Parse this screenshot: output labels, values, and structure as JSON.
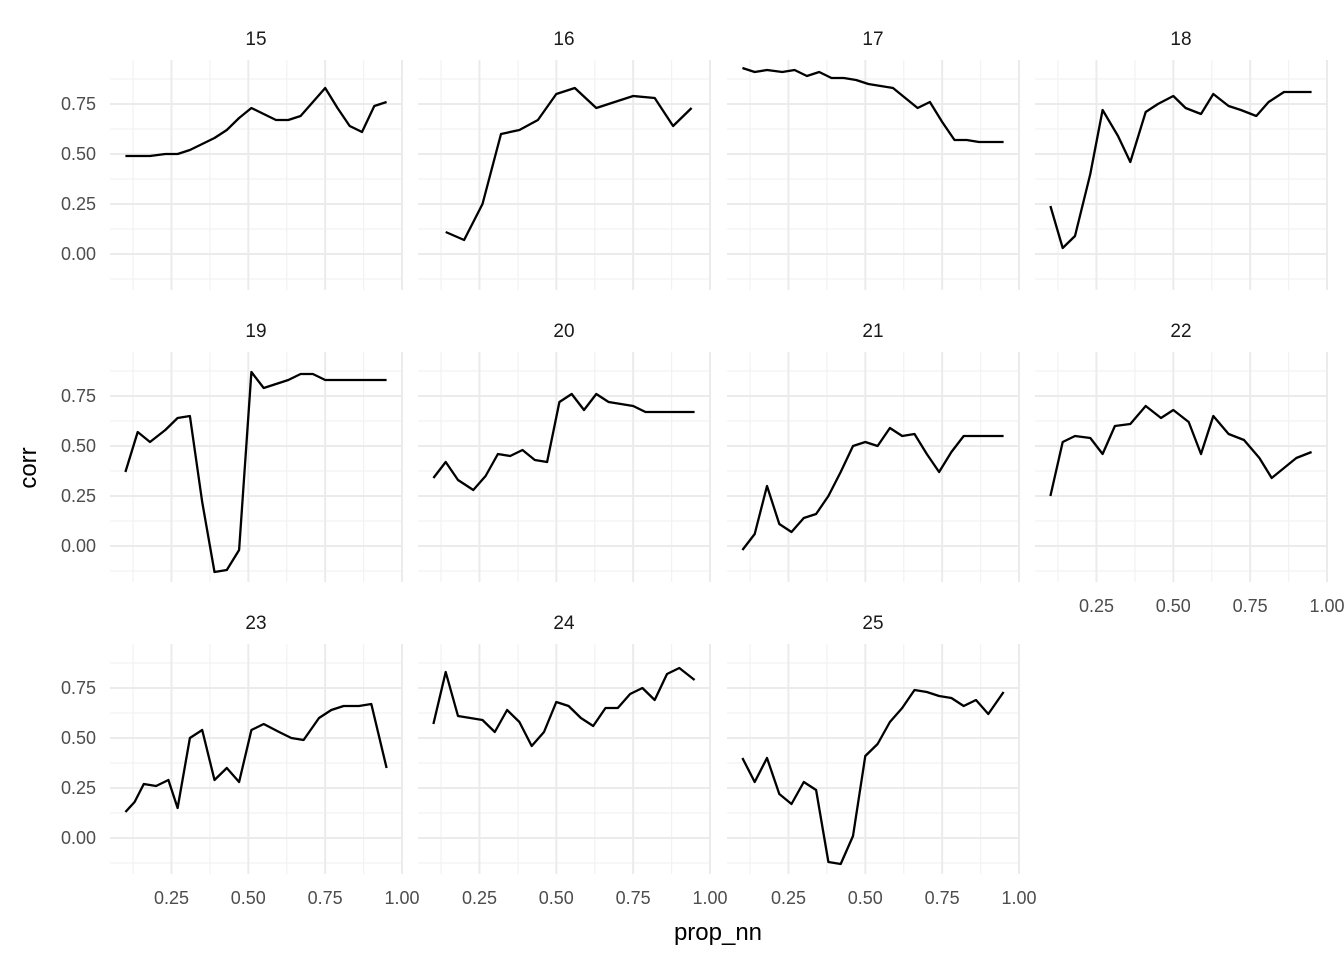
{
  "chart_data": {
    "type": "line",
    "layout": "facet_wrap",
    "xlabel": "prop_nn",
    "ylabel": "corr",
    "xlim": [
      0.05,
      1.0
    ],
    "ylim": [
      -0.18,
      0.97
    ],
    "x_ticks": [
      0.25,
      0.5,
      0.75,
      1.0
    ],
    "x_tick_labels": [
      "0.25",
      "0.50",
      "0.75",
      "1.00"
    ],
    "y_ticks": [
      0.0,
      0.25,
      0.5,
      0.75
    ],
    "y_tick_labels": [
      "0.00",
      "0.25",
      "0.50",
      "0.75"
    ],
    "grid": true,
    "facets": [
      {
        "label": "15",
        "x": [
          0.1,
          0.14,
          0.18,
          0.23,
          0.27,
          0.31,
          0.35,
          0.39,
          0.43,
          0.47,
          0.51,
          0.55,
          0.59,
          0.63,
          0.67,
          0.71,
          0.75,
          0.79,
          0.83,
          0.87,
          0.91,
          0.95
        ],
        "y": [
          0.49,
          0.49,
          0.49,
          0.5,
          0.5,
          0.52,
          0.55,
          0.58,
          0.62,
          0.68,
          0.73,
          0.7,
          0.67,
          0.67,
          0.69,
          0.76,
          0.83,
          0.73,
          0.64,
          0.61,
          0.74,
          0.76
        ]
      },
      {
        "label": "16",
        "x": [
          0.14,
          0.2,
          0.26,
          0.32,
          0.38,
          0.44,
          0.5,
          0.56,
          0.63,
          0.69,
          0.75,
          0.82,
          0.88,
          0.94
        ],
        "y": [
          0.11,
          0.07,
          0.25,
          0.6,
          0.62,
          0.67,
          0.8,
          0.83,
          0.73,
          0.76,
          0.79,
          0.78,
          0.64,
          0.73
        ]
      },
      {
        "label": "17",
        "x": [
          0.1,
          0.14,
          0.18,
          0.23,
          0.27,
          0.31,
          0.35,
          0.39,
          0.43,
          0.47,
          0.51,
          0.55,
          0.59,
          0.63,
          0.67,
          0.71,
          0.75,
          0.79,
          0.83,
          0.87,
          0.91,
          0.95
        ],
        "y": [
          0.93,
          0.91,
          0.92,
          0.91,
          0.92,
          0.89,
          0.91,
          0.88,
          0.88,
          0.87,
          0.85,
          0.84,
          0.83,
          0.78,
          0.73,
          0.76,
          0.66,
          0.57,
          0.57,
          0.56,
          0.56,
          0.56
        ]
      },
      {
        "label": "18",
        "x": [
          0.1,
          0.14,
          0.18,
          0.23,
          0.27,
          0.32,
          0.36,
          0.41,
          0.45,
          0.5,
          0.54,
          0.59,
          0.63,
          0.68,
          0.72,
          0.77,
          0.81,
          0.86,
          0.9,
          0.95
        ],
        "y": [
          0.24,
          0.03,
          0.09,
          0.4,
          0.72,
          0.59,
          0.46,
          0.71,
          0.75,
          0.79,
          0.73,
          0.7,
          0.8,
          0.74,
          0.72,
          0.69,
          0.76,
          0.81,
          0.81,
          0.81
        ]
      },
      {
        "label": "19",
        "x": [
          0.1,
          0.14,
          0.18,
          0.23,
          0.27,
          0.31,
          0.35,
          0.39,
          0.43,
          0.47,
          0.51,
          0.55,
          0.59,
          0.63,
          0.67,
          0.71,
          0.75,
          0.79,
          0.83,
          0.87,
          0.91,
          0.95
        ],
        "y": [
          0.37,
          0.57,
          0.52,
          0.58,
          0.64,
          0.65,
          0.22,
          -0.13,
          -0.12,
          -0.02,
          0.87,
          0.79,
          0.81,
          0.83,
          0.86,
          0.86,
          0.83,
          0.83,
          0.83,
          0.83,
          0.83,
          0.83
        ]
      },
      {
        "label": "20",
        "x": [
          0.1,
          0.14,
          0.18,
          0.23,
          0.27,
          0.31,
          0.35,
          0.39,
          0.43,
          0.47,
          0.51,
          0.55,
          0.59,
          0.63,
          0.67,
          0.71,
          0.75,
          0.79,
          0.83,
          0.87,
          0.91,
          0.95
        ],
        "y": [
          0.34,
          0.42,
          0.33,
          0.28,
          0.35,
          0.46,
          0.45,
          0.48,
          0.43,
          0.42,
          0.72,
          0.76,
          0.68,
          0.76,
          0.72,
          0.71,
          0.7,
          0.67,
          0.67,
          0.67,
          0.67,
          0.67
        ]
      },
      {
        "label": "21",
        "x": [
          0.1,
          0.14,
          0.18,
          0.22,
          0.26,
          0.3,
          0.34,
          0.38,
          0.42,
          0.46,
          0.5,
          0.54,
          0.58,
          0.62,
          0.66,
          0.7,
          0.74,
          0.78,
          0.82,
          0.86,
          0.9,
          0.95
        ],
        "y": [
          -0.02,
          0.06,
          0.3,
          0.11,
          0.07,
          0.14,
          0.16,
          0.25,
          0.37,
          0.5,
          0.52,
          0.5,
          0.59,
          0.55,
          0.56,
          0.46,
          0.37,
          0.47,
          0.55,
          0.55,
          0.55,
          0.55
        ]
      },
      {
        "label": "22",
        "x": [
          0.1,
          0.14,
          0.18,
          0.23,
          0.27,
          0.31,
          0.36,
          0.41,
          0.46,
          0.5,
          0.55,
          0.59,
          0.63,
          0.68,
          0.73,
          0.78,
          0.82,
          0.86,
          0.9,
          0.95
        ],
        "y": [
          0.25,
          0.52,
          0.55,
          0.54,
          0.46,
          0.6,
          0.61,
          0.7,
          0.64,
          0.68,
          0.62,
          0.46,
          0.65,
          0.56,
          0.53,
          0.44,
          0.34,
          0.39,
          0.44,
          0.47
        ]
      },
      {
        "label": "23",
        "x": [
          0.1,
          0.13,
          0.16,
          0.2,
          0.24,
          0.27,
          0.31,
          0.35,
          0.39,
          0.43,
          0.47,
          0.51,
          0.55,
          0.6,
          0.64,
          0.68,
          0.73,
          0.77,
          0.81,
          0.86,
          0.9,
          0.95
        ],
        "y": [
          0.13,
          0.18,
          0.27,
          0.26,
          0.29,
          0.15,
          0.5,
          0.54,
          0.29,
          0.35,
          0.28,
          0.54,
          0.57,
          0.53,
          0.5,
          0.49,
          0.6,
          0.64,
          0.66,
          0.66,
          0.67,
          0.35
        ]
      },
      {
        "label": "24",
        "x": [
          0.1,
          0.14,
          0.18,
          0.22,
          0.26,
          0.3,
          0.34,
          0.38,
          0.42,
          0.46,
          0.5,
          0.54,
          0.58,
          0.62,
          0.66,
          0.7,
          0.74,
          0.78,
          0.82,
          0.86,
          0.9,
          0.95
        ],
        "y": [
          0.57,
          0.83,
          0.61,
          0.6,
          0.59,
          0.53,
          0.64,
          0.58,
          0.46,
          0.53,
          0.68,
          0.66,
          0.6,
          0.56,
          0.65,
          0.65,
          0.72,
          0.75,
          0.69,
          0.82,
          0.85,
          0.79
        ]
      },
      {
        "label": "25",
        "x": [
          0.1,
          0.14,
          0.18,
          0.22,
          0.26,
          0.3,
          0.34,
          0.38,
          0.42,
          0.46,
          0.5,
          0.54,
          0.58,
          0.62,
          0.66,
          0.7,
          0.74,
          0.78,
          0.82,
          0.86,
          0.9,
          0.95
        ],
        "y": [
          0.4,
          0.28,
          0.4,
          0.22,
          0.17,
          0.28,
          0.24,
          -0.12,
          -0.13,
          0.01,
          0.41,
          0.47,
          0.58,
          0.65,
          0.74,
          0.73,
          0.71,
          0.7,
          0.66,
          0.69,
          0.62,
          0.73
        ]
      }
    ]
  }
}
